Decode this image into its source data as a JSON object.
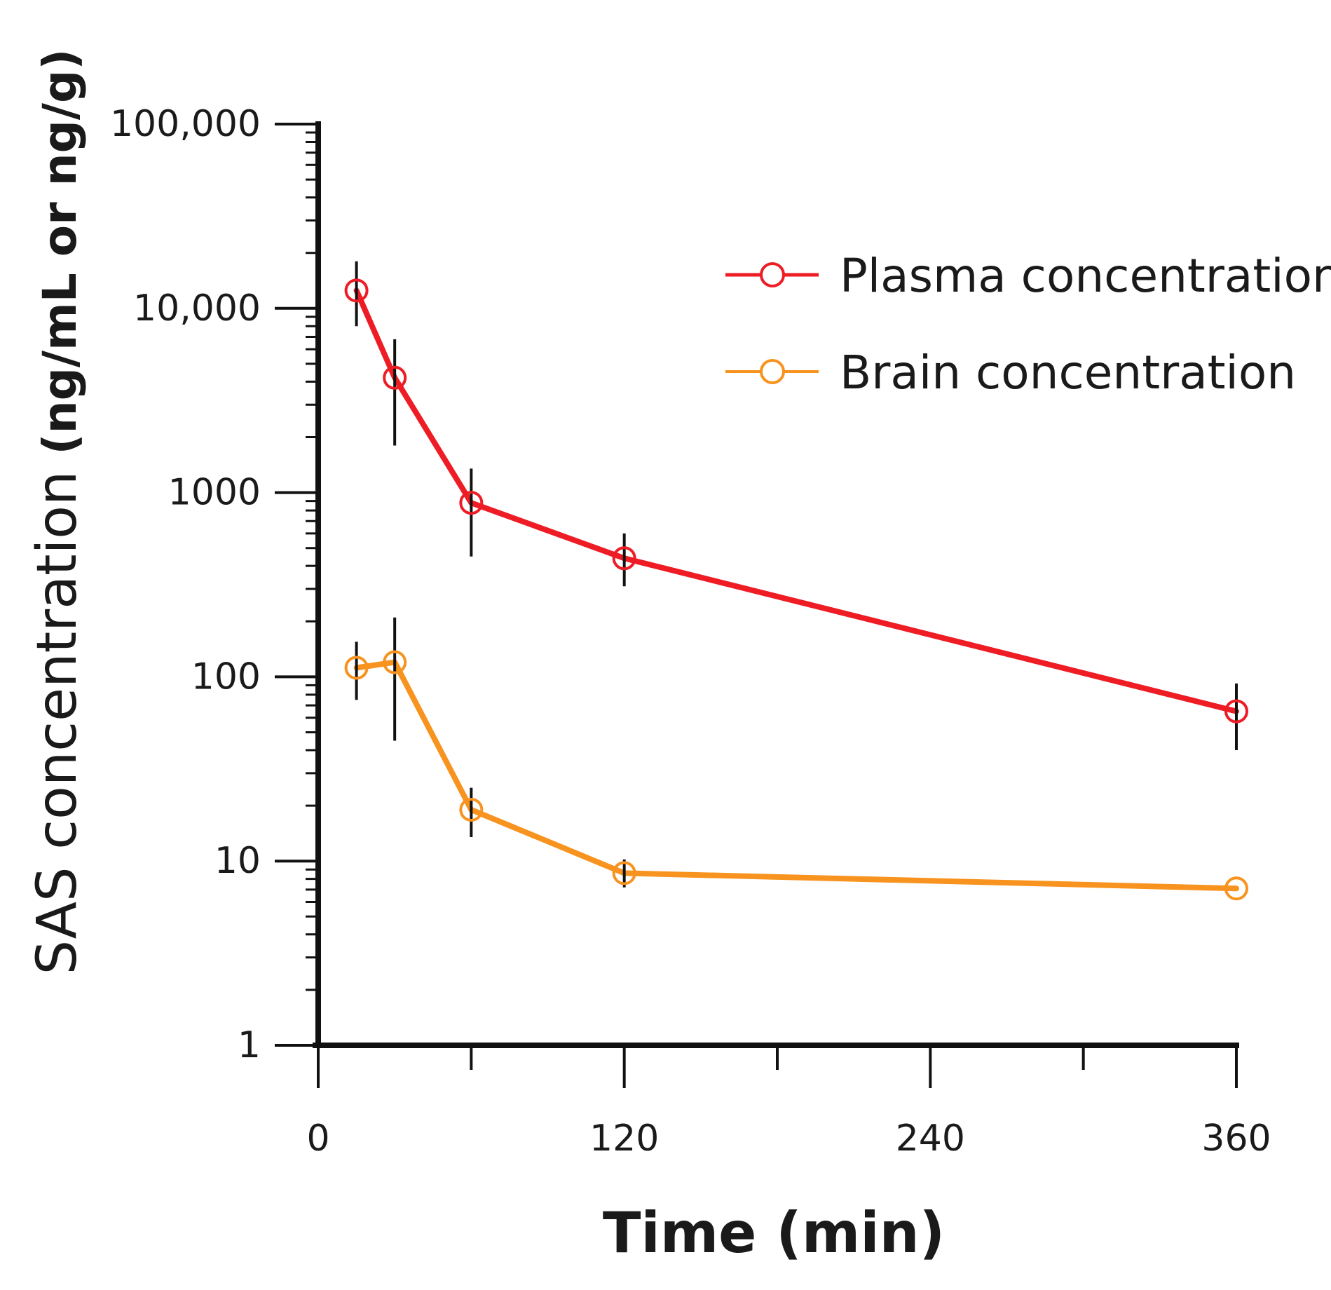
{
  "chart_data": {
    "type": "line",
    "title": "",
    "xlabel": "Time (min)",
    "ylabel_main": "SAS concentration",
    "ylabel_units": " (ng/mL or ng/g)",
    "yscale": "log",
    "xlim": [
      0,
      360
    ],
    "ylim": [
      1,
      100000
    ],
    "xticks": [
      0,
      120,
      240,
      360
    ],
    "xtick_labels": [
      "0",
      "120",
      "240",
      "360"
    ],
    "xminor_ticks": [
      60,
      180,
      300
    ],
    "yticks": [
      1,
      10,
      100,
      1000,
      10000,
      100000
    ],
    "ytick_labels": [
      "1",
      "10",
      "100",
      "1000",
      "10,000",
      "100,000"
    ],
    "grid": false,
    "legend_position": "top-right",
    "series": [
      {
        "name": "Plasma concentration",
        "color": "#ee1c25",
        "marker": "open-circle",
        "x": [
          15,
          30,
          60,
          120,
          360
        ],
        "y": [
          12500,
          4200,
          880,
          440,
          65
        ],
        "err_low": [
          8000,
          1800,
          450,
          310,
          40
        ],
        "err_high": [
          18000,
          6800,
          1350,
          600,
          92
        ]
      },
      {
        "name": "Brain concentration",
        "color": "#f7931e",
        "marker": "open-circle",
        "x": [
          15,
          30,
          60,
          120,
          360
        ],
        "y": [
          112,
          120,
          19,
          8.6,
          7.1
        ],
        "err_low": [
          75,
          45,
          13.5,
          7.2,
          7.1
        ],
        "err_high": [
          155,
          210,
          25,
          10.2,
          7.1
        ]
      }
    ]
  }
}
